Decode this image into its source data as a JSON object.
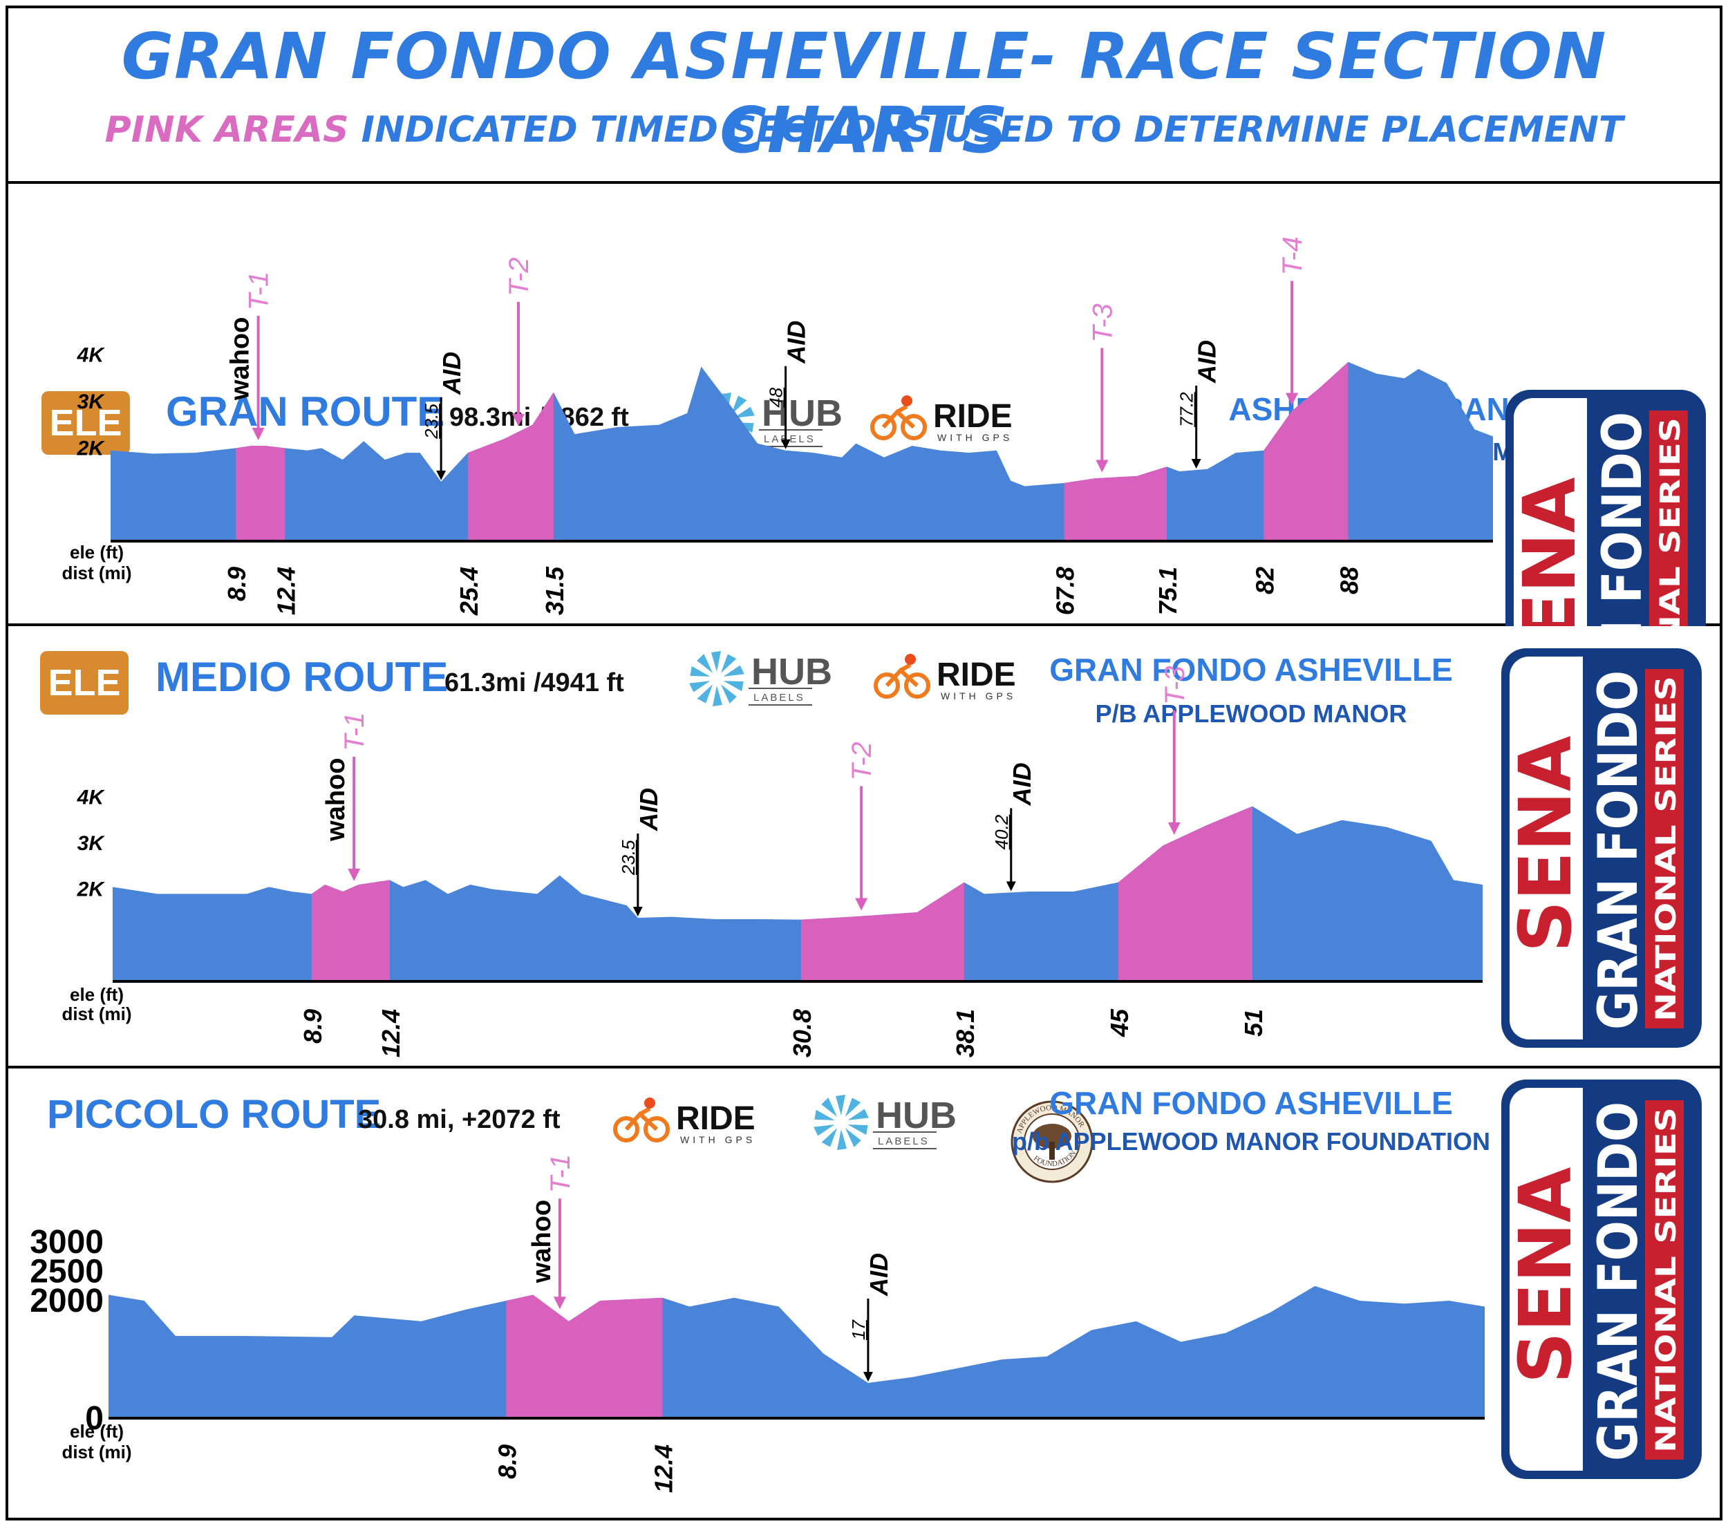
{
  "header": {
    "title": "GRAN FONDO ASHEVILLE- RACE SECTION CHARTS",
    "subtitle_pink": "PINK AREAS",
    "subtitle_rest": "INDICATED TIMED SECTIONS USED TO DETERMINE PLACEMENT"
  },
  "colors": {
    "blue": "#4a84d8",
    "pink": "#d861bd",
    "title_blue": "#2f7be0",
    "ele_badge": "#d88a2e",
    "sena_red": "#c8202f",
    "sena_navy": "#143b82"
  },
  "brand": {
    "hub": "HUB",
    "hub_sub": "LABELS",
    "ride": "RIDE",
    "ride_sub": "WITH  GPS",
    "sena1": "SENA",
    "sena2": "GRAN FONDO",
    "sena3": "NATIONAL SERIES",
    "applewood_top": "APPLEWOOD MANOR",
    "applewood_bottom": "FOUNDATION"
  },
  "chart_data": [
    {
      "type": "area",
      "title": "GRAN ROUTE",
      "badge": "ELE",
      "stats": "98.3mi /8862 ft",
      "event_title": "ASHEVILLE GRAN FONDO",
      "event_sub": "P/B APPLEWOOD MANOR",
      "xlabel": "dist (mi)",
      "ylabel": "ele (ft)",
      "xlim": [
        0,
        98.3
      ],
      "ylim": [
        0,
        4500
      ],
      "y_ticks": [
        {
          "v": 2000,
          "label": "2K"
        },
        {
          "v": 3000,
          "label": "3K"
        },
        {
          "v": 4000,
          "label": "4K"
        }
      ],
      "x_ticks": [
        "8.9",
        "12.4",
        "25.4",
        "31.5",
        "67.8",
        "75.1",
        "82",
        "88"
      ],
      "profile_x": [
        0,
        3,
        6,
        8.9,
        10,
        11,
        12.4,
        14,
        15,
        16.5,
        18,
        19.5,
        21,
        22,
        23.5,
        25.4,
        28,
        30,
        31.5,
        33,
        36,
        39,
        41,
        42,
        44,
        46,
        48,
        50,
        52,
        53,
        55,
        57,
        59,
        61,
        63,
        64,
        65,
        67.8,
        70,
        73,
        75.1,
        76,
        78,
        80,
        82,
        84,
        86,
        88,
        90,
        92,
        93,
        95,
        97,
        98.3
      ],
      "profile_y": [
        1950,
        1880,
        1900,
        2000,
        2050,
        2050,
        2000,
        1950,
        2000,
        1750,
        2150,
        1750,
        1900,
        1900,
        1280,
        1900,
        2200,
        2500,
        3200,
        2300,
        2450,
        2500,
        2750,
        3750,
        2950,
        2100,
        1950,
        1900,
        1800,
        2100,
        1800,
        2050,
        1950,
        1900,
        1950,
        1300,
        1180,
        1250,
        1350,
        1400,
        1600,
        1500,
        1550,
        1900,
        1950,
        2800,
        3300,
        3850,
        3600,
        3500,
        3700,
        3400,
        2400,
        2250
      ],
      "timed_sections": [
        {
          "start": 8.9,
          "end": 12.4
        },
        {
          "start": 25.4,
          "end": 31.5
        },
        {
          "start": 67.8,
          "end": 75.1
        },
        {
          "start": 82,
          "end": 88
        }
      ],
      "timed_labels": [
        {
          "label": "T-1",
          "at": 10.5,
          "wahoo": true
        },
        {
          "label": "T-2",
          "at": 29
        },
        {
          "label": "T-3",
          "at": 70.5
        },
        {
          "label": "T-4",
          "at": 84
        }
      ],
      "aid_stations": [
        {
          "mile": "23.5",
          "at": 23.5
        },
        {
          "mile": "48",
          "at": 48
        },
        {
          "mile": "77.2",
          "at": 77.2
        }
      ],
      "wahoo": "wahoo",
      "aid_text": "AID"
    },
    {
      "type": "area",
      "title": "MEDIO ROUTE",
      "badge": "ELE",
      "stats": "61.3mi /4941 ft",
      "event_title": "GRAN FONDO ASHEVILLE",
      "event_sub": "P/B APPLEWOOD MANOR",
      "xlabel": "dist (mi)",
      "ylabel": "ele (ft)",
      "xlim": [
        0,
        61.3
      ],
      "ylim": [
        0,
        4500
      ],
      "y_ticks": [
        {
          "v": 2000,
          "label": "2K"
        },
        {
          "v": 3000,
          "label": "3K"
        },
        {
          "v": 4000,
          "label": "4K"
        }
      ],
      "x_ticks": [
        "8.9",
        "12.4",
        "30.8",
        "38.1",
        "45",
        "51"
      ],
      "profile_x": [
        0,
        2,
        4,
        6,
        7,
        8,
        8.9,
        9.5,
        10.3,
        11,
        12.4,
        13,
        14,
        15,
        16,
        17,
        19,
        20,
        21,
        23,
        23.5,
        25,
        27,
        29,
        30.8,
        33,
        36,
        38.1,
        39,
        41,
        43,
        45,
        47,
        49,
        51,
        53,
        55,
        57,
        59,
        60,
        61.3
      ],
      "profile_y": [
        2050,
        1900,
        1900,
        1900,
        2050,
        1950,
        1900,
        2100,
        1950,
        2100,
        2200,
        2050,
        2200,
        1900,
        2100,
        2000,
        1900,
        2300,
        1900,
        1650,
        1380,
        1400,
        1350,
        1350,
        1340,
        1400,
        1500,
        2150,
        1900,
        1950,
        1950,
        2150,
        2950,
        3400,
        3800,
        3200,
        3500,
        3350,
        3050,
        2200,
        2100
      ],
      "timed_sections": [
        {
          "start": 8.9,
          "end": 12.4
        },
        {
          "start": 30.8,
          "end": 38.1
        },
        {
          "start": 45,
          "end": 51
        }
      ],
      "timed_labels": [
        {
          "label": "T-1",
          "at": 10.8,
          "wahoo": true
        },
        {
          "label": "T-2",
          "at": 33.5
        },
        {
          "label": "T-3",
          "at": 47.5
        }
      ],
      "aid_stations": [
        {
          "mile": "23.5",
          "at": 23.5
        },
        {
          "mile": "40.2",
          "at": 40.2
        }
      ],
      "wahoo": "wahoo",
      "aid_text": "AID"
    },
    {
      "type": "area",
      "title": "PICCOLO ROUTE",
      "stats": "30.8 mi, +2072 ft",
      "event_title": "GRAN FONDO ASHEVILLE",
      "event_sub": "p/b APPLEWOOD MANOR FOUNDATION",
      "xlabel": "dist (mi)",
      "ylabel": "ele (ft)",
      "xlim": [
        0,
        30.8
      ],
      "ylim": [
        0,
        3200
      ],
      "y_ticks": [
        {
          "v": 0,
          "label": "0"
        },
        {
          "v": 2000,
          "label": "2000"
        },
        {
          "v": 2500,
          "label": "2500"
        },
        {
          "v": 3000,
          "label": "3000"
        }
      ],
      "x_ticks": [
        "8.9",
        "12.4"
      ],
      "profile_x": [
        0,
        0.8,
        1.5,
        3,
        5,
        5.5,
        7,
        8,
        8.9,
        9.5,
        10.3,
        11,
        12.4,
        13,
        14,
        15,
        16,
        17,
        18,
        20,
        21,
        22,
        23,
        24,
        25,
        26,
        27,
        28,
        29,
        30,
        30.8
      ],
      "profile_y": [
        2100,
        2000,
        1400,
        1400,
        1380,
        1750,
        1650,
        1850,
        2000,
        2100,
        1650,
        2000,
        2050,
        1900,
        2050,
        1900,
        1100,
        600,
        700,
        1000,
        1050,
        1500,
        1650,
        1300,
        1450,
        1800,
        2250,
        2000,
        1950,
        2000,
        1900
      ],
      "timed_sections": [
        {
          "start": 8.9,
          "end": 12.4
        }
      ],
      "timed_labels": [
        {
          "label": "T-1",
          "at": 10.1,
          "wahoo": true
        }
      ],
      "aid_stations": [
        {
          "mile": "17",
          "at": 17
        }
      ],
      "wahoo": "wahoo",
      "aid_text": "AID"
    }
  ]
}
